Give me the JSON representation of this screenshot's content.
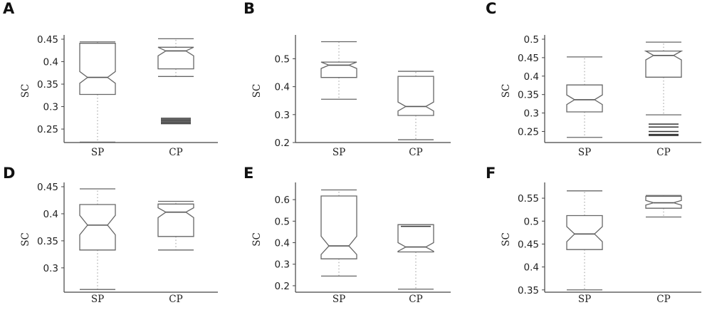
{
  "chart_data": [
    {
      "panel": "A",
      "type": "boxplot",
      "ylabel": "SC",
      "ylim": [
        0.22,
        0.45
      ],
      "yticks": [
        0.25,
        0.3,
        0.35,
        0.4,
        0.45
      ],
      "ytick_labels": [
        "0.25",
        "0.3",
        "0.35",
        "0.4",
        "0.45"
      ],
      "categories": [
        "SP",
        "CP"
      ],
      "boxes": [
        {
          "category": "SP",
          "whisker_low": 0.221,
          "q1": 0.327,
          "median": 0.365,
          "q3": 0.441,
          "whisker_high": 0.444,
          "notch_low": 0.352,
          "notch_high": 0.378,
          "outliers": []
        },
        {
          "category": "CP",
          "whisker_low": 0.367,
          "q1": 0.384,
          "median": 0.424,
          "q3": 0.432,
          "whisker_high": 0.451,
          "notch_low": 0.413,
          "notch_high": 0.433,
          "outliers": [
            0.262,
            0.265,
            0.268,
            0.271,
            0.274
          ]
        }
      ]
    },
    {
      "panel": "B",
      "type": "boxplot",
      "ylabel": "SC",
      "ylim": [
        0.2,
        0.57
      ],
      "yticks": [
        0.2,
        0.3,
        0.4,
        0.5
      ],
      "ytick_labels": [
        "0.2",
        "0.3",
        "0.4",
        "0.5"
      ],
      "categories": [
        "SP",
        "CP"
      ],
      "boxes": [
        {
          "category": "SP",
          "whisker_low": 0.355,
          "q1": 0.433,
          "median": 0.477,
          "q3": 0.488,
          "whisker_high": 0.561,
          "notch_low": 0.465,
          "notch_high": 0.493,
          "outliers": []
        },
        {
          "category": "CP",
          "whisker_low": 0.21,
          "q1": 0.297,
          "median": 0.329,
          "q3": 0.437,
          "whisker_high": 0.455,
          "notch_low": 0.313,
          "notch_high": 0.345,
          "outliers": []
        }
      ]
    },
    {
      "panel": "C",
      "type": "boxplot",
      "ylabel": "SC",
      "ylim": [
        0.22,
        0.5
      ],
      "yticks": [
        0.25,
        0.3,
        0.35,
        0.4,
        0.45,
        0.5
      ],
      "ytick_labels": [
        "0.25",
        "0.3",
        "0.35",
        "0.4",
        "0.45",
        "0.5"
      ],
      "categories": [
        "SP",
        "CP"
      ],
      "boxes": [
        {
          "category": "SP",
          "whisker_low": 0.234,
          "q1": 0.303,
          "median": 0.336,
          "q3": 0.376,
          "whisker_high": 0.452,
          "notch_low": 0.323,
          "notch_high": 0.349,
          "outliers": []
        },
        {
          "category": "CP",
          "whisker_low": 0.295,
          "q1": 0.397,
          "median": 0.456,
          "q3": 0.468,
          "whisker_high": 0.492,
          "notch_low": 0.444,
          "notch_high": 0.468,
          "outliers": [
            0.239,
            0.242,
            0.25,
            0.262,
            0.27
          ]
        }
      ]
    },
    {
      "panel": "D",
      "type": "boxplot",
      "ylabel": "SC",
      "ylim": [
        0.255,
        0.45
      ],
      "yticks": [
        0.3,
        0.35,
        0.4,
        0.45
      ],
      "ytick_labels": [
        "0.3",
        "0.35",
        "0.4",
        "0.45"
      ],
      "categories": [
        "SP",
        "CP"
      ],
      "boxes": [
        {
          "category": "SP",
          "whisker_low": 0.26,
          "q1": 0.333,
          "median": 0.379,
          "q3": 0.417,
          "whisker_high": 0.446,
          "notch_low": 0.361,
          "notch_high": 0.397,
          "outliers": []
        },
        {
          "category": "CP",
          "whisker_low": 0.333,
          "q1": 0.358,
          "median": 0.403,
          "q3": 0.418,
          "whisker_high": 0.423,
          "notch_low": 0.393,
          "notch_high": 0.411,
          "outliers": []
        }
      ]
    },
    {
      "panel": "E",
      "type": "boxplot",
      "ylabel": "SC",
      "ylim": [
        0.17,
        0.66
      ],
      "yticks": [
        0.2,
        0.3,
        0.4,
        0.5,
        0.6
      ],
      "ytick_labels": [
        "0.2",
        "0.3",
        "0.4",
        "0.5",
        "0.6"
      ],
      "categories": [
        "SP",
        "CP"
      ],
      "boxes": [
        {
          "category": "SP",
          "whisker_low": 0.245,
          "q1": 0.325,
          "median": 0.385,
          "q3": 0.617,
          "whisker_high": 0.645,
          "notch_low": 0.345,
          "notch_high": 0.43,
          "outliers": []
        },
        {
          "category": "CP",
          "whisker_low": 0.184,
          "q1": 0.357,
          "median": 0.38,
          "q3": 0.484,
          "whisker_high": 0.484,
          "notch_low": 0.36,
          "notch_high": 0.4,
          "outliers": [
            0.476
          ]
        }
      ]
    },
    {
      "panel": "F",
      "type": "boxplot",
      "ylabel": "SC",
      "ylim": [
        0.345,
        0.575
      ],
      "yticks": [
        0.35,
        0.4,
        0.45,
        0.5,
        0.55
      ],
      "ytick_labels": [
        "0.35",
        "0.4",
        "0.45",
        "0.5",
        "0.55"
      ],
      "categories": [
        "SP",
        "CP"
      ],
      "boxes": [
        {
          "category": "SP",
          "whisker_low": 0.35,
          "q1": 0.438,
          "median": 0.472,
          "q3": 0.512,
          "whisker_high": 0.566,
          "notch_low": 0.455,
          "notch_high": 0.488,
          "outliers": []
        },
        {
          "category": "CP",
          "whisker_low": 0.509,
          "q1": 0.528,
          "median": 0.54,
          "q3": 0.554,
          "whisker_high": 0.556,
          "notch_low": 0.535,
          "notch_high": 0.545,
          "outliers": []
        }
      ]
    }
  ]
}
